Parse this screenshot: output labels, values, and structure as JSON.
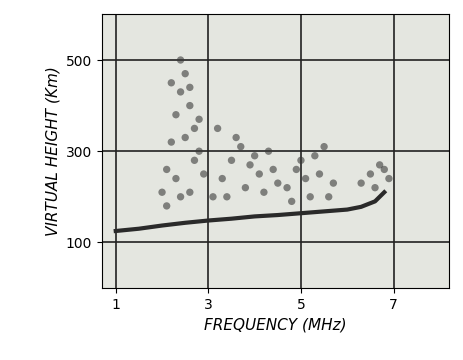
{
  "chart_data": {
    "type": "scatter",
    "x_label": "FREQUENCY (MHz)",
    "y_label": "VIRTUAL HEIGHT (Km)",
    "xlim": [
      0.7,
      8.2
    ],
    "ylim": [
      0,
      600
    ],
    "xticks": [
      1,
      3,
      5,
      7
    ],
    "yticks": [
      100,
      300,
      500
    ],
    "grid": true,
    "series": [
      {
        "type": "line",
        "color": "#2a2a2a",
        "line_style": "solid",
        "x": [
          1.0,
          1.5,
          2.0,
          2.5,
          3.0,
          3.5,
          4.0,
          4.5,
          5.0,
          5.5,
          6.0,
          6.3,
          6.6,
          6.8
        ],
        "values": [
          125,
          130,
          137,
          143,
          148,
          152,
          157,
          160,
          164,
          168,
          172,
          178,
          190,
          210
        ]
      },
      {
        "type": "scatter",
        "color": "#3a3a3a",
        "marker": "o",
        "x": [
          2.0,
          2.1,
          2.2,
          2.3,
          2.4,
          2.5,
          2.6,
          2.7,
          2.8,
          2.9,
          2.2,
          2.4,
          2.6,
          2.8,
          2.3,
          2.5,
          2.7,
          2.1,
          2.4,
          2.6,
          3.1,
          3.3,
          3.5,
          3.7,
          3.9,
          4.1,
          4.3,
          4.5,
          3.2,
          3.6,
          4.0,
          4.4,
          3.4,
          3.8,
          4.2,
          4.7,
          4.9,
          5.1,
          5.3,
          5.5,
          5.7,
          4.8,
          5.2,
          5.6,
          5.0,
          5.4,
          6.3,
          6.5,
          6.7,
          6.9,
          6.6,
          6.8
        ],
        "values": [
          210,
          260,
          320,
          380,
          430,
          470,
          400,
          350,
          300,
          250,
          450,
          500,
          440,
          370,
          240,
          330,
          280,
          180,
          200,
          210,
          200,
          240,
          280,
          310,
          270,
          250,
          300,
          230,
          350,
          330,
          290,
          260,
          200,
          220,
          210,
          220,
          260,
          240,
          290,
          310,
          230,
          190,
          200,
          200,
          280,
          250,
          230,
          250,
          270,
          240,
          220,
          260
        ]
      }
    ]
  }
}
